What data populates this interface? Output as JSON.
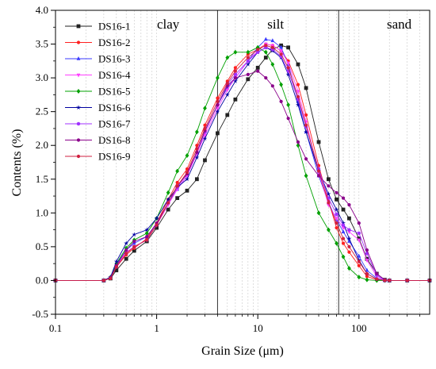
{
  "chart_data": {
    "type": "line",
    "title": "",
    "xlabel": "Grain Size (μm)",
    "ylabel": "Contents (%)",
    "xscale": "log",
    "xlim": [
      0.1,
      500
    ],
    "ylim": [
      -0.5,
      4.0
    ],
    "xticks": [
      {
        "value": 0.1,
        "label": "0.1"
      },
      {
        "value": 1,
        "label": "1"
      },
      {
        "value": 10,
        "label": "10"
      },
      {
        "value": 100,
        "label": "100"
      }
    ],
    "yticks": [
      {
        "value": -0.5,
        "label": "-0.5"
      },
      {
        "value": 0.0,
        "label": "0.0"
      },
      {
        "value": 0.5,
        "label": "0.5"
      },
      {
        "value": 1.0,
        "label": "1.0"
      },
      {
        "value": 1.5,
        "label": "1.5"
      },
      {
        "value": 2.0,
        "label": "2.0"
      },
      {
        "value": 2.5,
        "label": "2.5"
      },
      {
        "value": 3.0,
        "label": "3.0"
      },
      {
        "value": 3.5,
        "label": "3.5"
      },
      {
        "value": 4.0,
        "label": "4.0"
      }
    ],
    "vertical_lines": [
      4,
      63
    ],
    "regions": [
      {
        "label": "clay",
        "x": 1.3
      },
      {
        "label": "silt",
        "x": 15
      },
      {
        "label": "sand",
        "x": 250
      }
    ],
    "grid": "minor x gridlines, dotted",
    "legend_position": "top-left",
    "series": [
      {
        "name": "DS16-1",
        "color": "#222222",
        "marker": "square",
        "x": [
          0.1,
          0.3,
          0.35,
          0.4,
          0.5,
          0.6,
          0.8,
          1.0,
          1.3,
          1.6,
          2,
          2.5,
          3,
          4,
          5,
          6,
          8,
          10,
          12,
          14,
          17,
          20,
          25,
          30,
          40,
          50,
          60,
          70,
          80,
          100,
          120,
          150,
          180,
          200,
          300,
          500
        ],
        "y": [
          0,
          0,
          0.03,
          0.15,
          0.32,
          0.44,
          0.58,
          0.78,
          1.05,
          1.22,
          1.33,
          1.5,
          1.78,
          2.18,
          2.45,
          2.68,
          2.98,
          3.15,
          3.3,
          3.42,
          3.48,
          3.45,
          3.2,
          2.85,
          2.05,
          1.5,
          1.2,
          1.05,
          0.92,
          0.62,
          0.32,
          0.1,
          0.01,
          0,
          0,
          0
        ]
      },
      {
        "name": "DS16-2",
        "color": "#ff2020",
        "marker": "circle",
        "x": [
          0.1,
          0.3,
          0.35,
          0.4,
          0.5,
          0.6,
          0.8,
          1.0,
          1.3,
          1.6,
          2,
          2.5,
          3,
          4,
          5,
          6,
          8,
          10,
          12,
          14,
          17,
          20,
          25,
          30,
          40,
          50,
          60,
          70,
          80,
          100,
          120,
          150,
          180,
          200,
          300,
          500
        ],
        "y": [
          0,
          0,
          0.03,
          0.2,
          0.38,
          0.48,
          0.62,
          0.85,
          1.2,
          1.45,
          1.65,
          2.0,
          2.3,
          2.7,
          2.95,
          3.15,
          3.35,
          3.42,
          3.5,
          3.48,
          3.4,
          3.25,
          2.9,
          2.45,
          1.7,
          1.18,
          0.78,
          0.55,
          0.42,
          0.22,
          0.06,
          0.01,
          0,
          0,
          0,
          0
        ]
      },
      {
        "name": "DS16-3",
        "color": "#3a3aff",
        "marker": "triangle-up",
        "x": [
          0.1,
          0.3,
          0.35,
          0.4,
          0.5,
          0.6,
          0.8,
          1.0,
          1.3,
          1.6,
          2,
          2.5,
          3,
          4,
          5,
          6,
          8,
          10,
          12,
          14,
          17,
          20,
          25,
          30,
          40,
          50,
          60,
          70,
          80,
          100,
          120,
          150,
          180,
          200,
          300,
          500
        ],
        "y": [
          0,
          0,
          0.04,
          0.24,
          0.45,
          0.55,
          0.65,
          0.84,
          1.15,
          1.35,
          1.55,
          1.88,
          2.2,
          2.6,
          2.85,
          3.0,
          3.25,
          3.45,
          3.57,
          3.55,
          3.45,
          3.2,
          2.65,
          2.2,
          1.55,
          1.15,
          0.9,
          0.72,
          0.58,
          0.36,
          0.15,
          0.03,
          0,
          0,
          0,
          0
        ]
      },
      {
        "name": "DS16-4",
        "color": "#ff40ff",
        "marker": "triangle-down",
        "x": [
          0.1,
          0.3,
          0.35,
          0.4,
          0.5,
          0.6,
          0.8,
          1.0,
          1.3,
          1.6,
          2,
          2.5,
          3,
          4,
          5,
          6,
          8,
          10,
          12,
          14,
          17,
          20,
          25,
          30,
          40,
          50,
          60,
          70,
          80,
          100,
          120,
          150,
          180,
          200,
          300,
          500
        ],
        "y": [
          0,
          0,
          0.04,
          0.22,
          0.42,
          0.5,
          0.6,
          0.82,
          1.12,
          1.35,
          1.55,
          1.88,
          2.15,
          2.55,
          2.82,
          3.0,
          3.25,
          3.4,
          3.5,
          3.48,
          3.4,
          3.22,
          2.8,
          2.35,
          1.6,
          1.12,
          0.92,
          0.78,
          0.72,
          0.6,
          0.3,
          0.06,
          0,
          0,
          0,
          0
        ]
      },
      {
        "name": "DS16-5",
        "color": "#00a000",
        "marker": "diamond",
        "x": [
          0.1,
          0.3,
          0.35,
          0.4,
          0.5,
          0.6,
          0.8,
          1.0,
          1.3,
          1.6,
          2,
          2.5,
          3,
          4,
          5,
          6,
          8,
          10,
          12,
          14,
          17,
          20,
          25,
          30,
          40,
          50,
          60,
          70,
          80,
          100,
          120,
          150,
          180,
          200,
          300,
          500
        ],
        "y": [
          0,
          0,
          0.05,
          0.25,
          0.48,
          0.6,
          0.7,
          0.92,
          1.3,
          1.62,
          1.85,
          2.2,
          2.55,
          3.0,
          3.3,
          3.38,
          3.38,
          3.45,
          3.38,
          3.2,
          2.9,
          2.6,
          2.0,
          1.55,
          1.0,
          0.75,
          0.55,
          0.35,
          0.18,
          0.05,
          0.01,
          0,
          0,
          0,
          0,
          0
        ]
      },
      {
        "name": "DS16-6",
        "color": "#0000a0",
        "marker": "star",
        "x": [
          0.1,
          0.3,
          0.35,
          0.4,
          0.5,
          0.6,
          0.8,
          1.0,
          1.3,
          1.6,
          2,
          2.5,
          3,
          4,
          5,
          6,
          8,
          10,
          12,
          14,
          17,
          20,
          25,
          30,
          40,
          50,
          60,
          70,
          80,
          100,
          120,
          150,
          180,
          200,
          300,
          500
        ],
        "y": [
          0,
          0,
          0.05,
          0.28,
          0.55,
          0.68,
          0.75,
          0.92,
          1.2,
          1.38,
          1.5,
          1.82,
          2.1,
          2.5,
          2.75,
          2.95,
          3.2,
          3.38,
          3.45,
          3.4,
          3.3,
          3.05,
          2.6,
          2.2,
          1.62,
          1.28,
          1.05,
          0.85,
          0.62,
          0.3,
          0.1,
          0.02,
          0,
          0,
          0,
          0
        ]
      },
      {
        "name": "DS16-7",
        "color": "#a030ff",
        "marker": "hexagon",
        "x": [
          0.1,
          0.3,
          0.35,
          0.4,
          0.5,
          0.6,
          0.8,
          1.0,
          1.3,
          1.6,
          2,
          2.5,
          3,
          4,
          5,
          6,
          8,
          10,
          12,
          14,
          17,
          20,
          25,
          30,
          40,
          50,
          60,
          70,
          80,
          100,
          120,
          150,
          180,
          200,
          300,
          500
        ],
        "y": [
          0,
          0,
          0.04,
          0.2,
          0.4,
          0.5,
          0.6,
          0.82,
          1.15,
          1.38,
          1.58,
          1.9,
          2.2,
          2.6,
          2.9,
          3.05,
          3.25,
          3.38,
          3.45,
          3.42,
          3.32,
          3.1,
          2.68,
          2.28,
          1.65,
          1.22,
          0.98,
          0.82,
          0.75,
          0.7,
          0.4,
          0.08,
          0,
          0,
          0,
          0
        ]
      },
      {
        "name": "DS16-8",
        "color": "#8a008a",
        "marker": "circle",
        "x": [
          0.1,
          0.3,
          0.35,
          0.4,
          0.5,
          0.6,
          0.8,
          1.0,
          1.3,
          1.6,
          2,
          2.5,
          3,
          4,
          5,
          6,
          8,
          10,
          12,
          14,
          17,
          20,
          25,
          30,
          40,
          50,
          60,
          70,
          80,
          100,
          120,
          150,
          180,
          200,
          300,
          500
        ],
        "y": [
          0,
          0,
          0.04,
          0.22,
          0.45,
          0.58,
          0.65,
          0.85,
          1.15,
          1.4,
          1.58,
          1.9,
          2.22,
          2.6,
          2.88,
          3.0,
          3.05,
          3.1,
          3.0,
          2.88,
          2.65,
          2.4,
          2.05,
          1.8,
          1.55,
          1.4,
          1.3,
          1.22,
          1.12,
          0.85,
          0.45,
          0.1,
          0.01,
          0,
          0,
          0
        ]
      },
      {
        "name": "DS16-9",
        "color": "#d02040",
        "marker": "circle",
        "x": [
          0.1,
          0.3,
          0.35,
          0.4,
          0.5,
          0.6,
          0.8,
          1.0,
          1.3,
          1.6,
          2,
          2.5,
          3,
          4,
          5,
          6,
          8,
          10,
          12,
          14,
          17,
          20,
          25,
          30,
          40,
          50,
          60,
          70,
          80,
          100,
          120,
          150,
          180,
          200,
          300,
          500
        ],
        "y": [
          0,
          0,
          0.03,
          0.2,
          0.4,
          0.5,
          0.6,
          0.82,
          1.15,
          1.4,
          1.6,
          1.95,
          2.25,
          2.65,
          2.92,
          3.1,
          3.3,
          3.42,
          3.48,
          3.45,
          3.35,
          3.15,
          2.72,
          2.3,
          1.62,
          1.15,
          0.85,
          0.62,
          0.5,
          0.28,
          0.1,
          0.02,
          0,
          0,
          0,
          0
        ]
      }
    ]
  }
}
